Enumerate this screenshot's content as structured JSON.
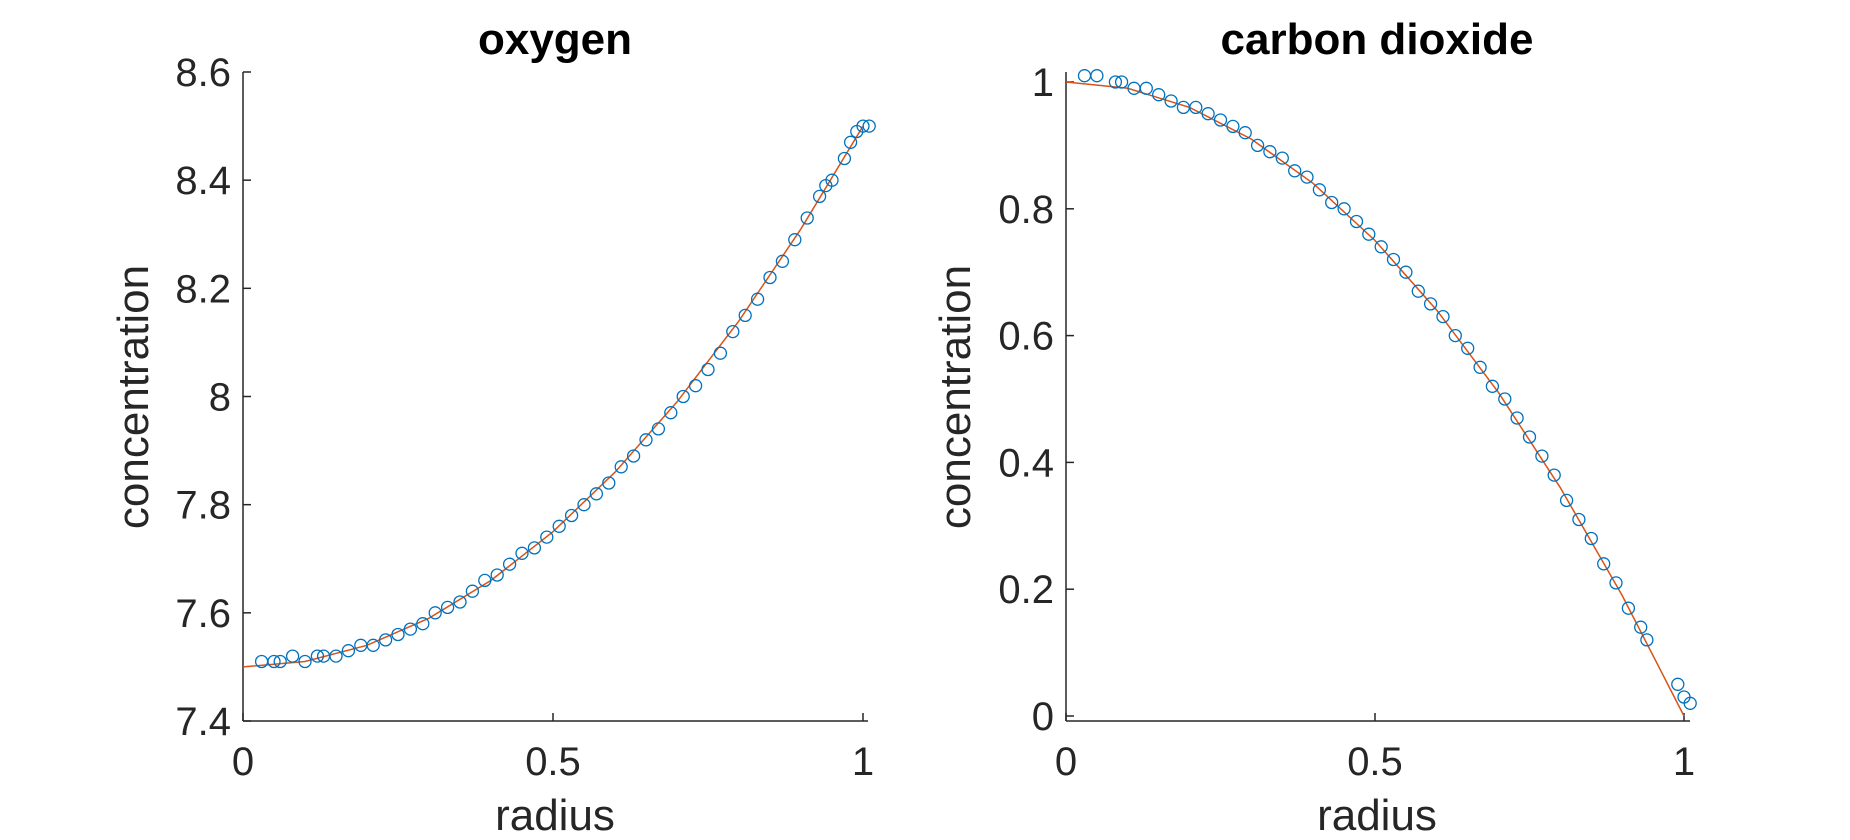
{
  "chart_data": [
    {
      "type": "scatter",
      "title": "oxygen",
      "xlabel": "radius",
      "ylabel": "concentration",
      "xlim": [
        0,
        1
      ],
      "ylim": [
        7.4,
        8.6
      ],
      "xticks": [
        0,
        0.5,
        1
      ],
      "xtick_labels": [
        "0",
        "0.5",
        "1"
      ],
      "yticks": [
        7.4,
        7.6,
        7.8,
        8.0,
        8.2,
        8.4,
        8.6
      ],
      "ytick_labels": [
        "7.4",
        "7.6",
        "7.8",
        "8",
        "8.2",
        "8.4",
        "8.6"
      ],
      "fit_curve": {
        "x": [
          0,
          0.1,
          0.2,
          0.3,
          0.4,
          0.5,
          0.6,
          0.7,
          0.8,
          0.9,
          1.0
        ],
        "y": [
          7.5,
          7.51,
          7.54,
          7.59,
          7.66,
          7.75,
          7.86,
          7.99,
          8.14,
          8.31,
          8.5
        ]
      },
      "points": {
        "x": [
          0.03,
          0.05,
          0.06,
          0.08,
          0.1,
          0.12,
          0.13,
          0.15,
          0.17,
          0.19,
          0.21,
          0.23,
          0.25,
          0.27,
          0.29,
          0.31,
          0.33,
          0.35,
          0.37,
          0.39,
          0.41,
          0.43,
          0.45,
          0.47,
          0.49,
          0.51,
          0.53,
          0.55,
          0.57,
          0.59,
          0.61,
          0.63,
          0.65,
          0.67,
          0.69,
          0.71,
          0.73,
          0.75,
          0.77,
          0.79,
          0.81,
          0.83,
          0.85,
          0.87,
          0.89,
          0.91,
          0.93,
          0.94,
          0.95,
          0.97,
          0.98,
          0.99,
          1.0,
          1.01
        ],
        "y": [
          7.51,
          7.51,
          7.51,
          7.52,
          7.51,
          7.52,
          7.52,
          7.52,
          7.53,
          7.54,
          7.54,
          7.55,
          7.56,
          7.57,
          7.58,
          7.6,
          7.61,
          7.62,
          7.64,
          7.66,
          7.67,
          7.69,
          7.71,
          7.72,
          7.74,
          7.76,
          7.78,
          7.8,
          7.82,
          7.84,
          7.87,
          7.89,
          7.92,
          7.94,
          7.97,
          8.0,
          8.02,
          8.05,
          8.08,
          8.12,
          8.15,
          8.18,
          8.22,
          8.25,
          8.29,
          8.33,
          8.37,
          8.39,
          8.4,
          8.44,
          8.47,
          8.49,
          8.5,
          8.5
        ]
      }
    },
    {
      "type": "scatter",
      "title": "carbon dioxide",
      "xlabel": "radius",
      "ylabel": "concentration",
      "xlim": [
        0,
        1
      ],
      "ylim": [
        0,
        1
      ],
      "xticks": [
        0,
        0.5,
        1
      ],
      "xtick_labels": [
        "0",
        "0.5",
        "1"
      ],
      "yticks": [
        0,
        0.2,
        0.4,
        0.6,
        0.8,
        1
      ],
      "ytick_labels": [
        "0",
        "0.2",
        "0.4",
        "0.6",
        "0.8",
        "1"
      ],
      "fit_curve": {
        "x": [
          0,
          0.1,
          0.2,
          0.3,
          0.4,
          0.5,
          0.6,
          0.7,
          0.8,
          0.9,
          1.0
        ],
        "y": [
          1.0,
          0.99,
          0.96,
          0.91,
          0.84,
          0.75,
          0.64,
          0.51,
          0.36,
          0.19,
          0.0
        ]
      },
      "points": {
        "x": [
          0.03,
          0.05,
          0.08,
          0.09,
          0.11,
          0.13,
          0.15,
          0.17,
          0.19,
          0.21,
          0.23,
          0.25,
          0.27,
          0.29,
          0.31,
          0.33,
          0.35,
          0.37,
          0.39,
          0.41,
          0.43,
          0.45,
          0.47,
          0.49,
          0.51,
          0.53,
          0.55,
          0.57,
          0.59,
          0.61,
          0.63,
          0.65,
          0.67,
          0.69,
          0.71,
          0.73,
          0.75,
          0.77,
          0.79,
          0.81,
          0.83,
          0.85,
          0.87,
          0.89,
          0.91,
          0.93,
          0.94,
          0.99,
          1.0,
          1.01
        ],
        "y": [
          1.01,
          1.01,
          1.0,
          1.0,
          0.99,
          0.99,
          0.98,
          0.97,
          0.96,
          0.96,
          0.95,
          0.94,
          0.93,
          0.92,
          0.9,
          0.89,
          0.88,
          0.86,
          0.85,
          0.83,
          0.81,
          0.8,
          0.78,
          0.76,
          0.74,
          0.72,
          0.7,
          0.67,
          0.65,
          0.63,
          0.6,
          0.58,
          0.55,
          0.52,
          0.5,
          0.47,
          0.44,
          0.41,
          0.38,
          0.34,
          0.31,
          0.28,
          0.24,
          0.21,
          0.17,
          0.14,
          0.12,
          0.05,
          0.03,
          0.02
        ]
      }
    }
  ],
  "colors": {
    "marker": "#0072BD",
    "fit_line": "#D95319",
    "axis": "#262626"
  }
}
